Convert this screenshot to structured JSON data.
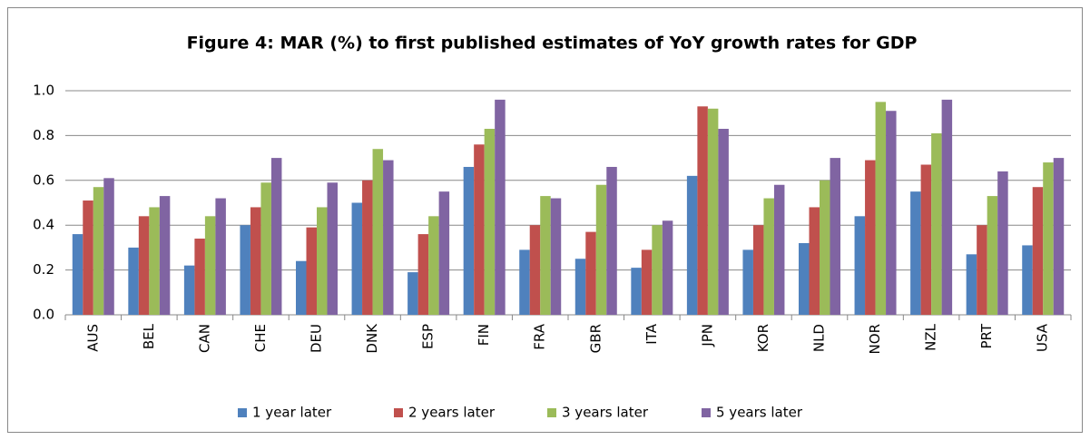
{
  "chart_data": {
    "type": "bar",
    "title": "Figure 4: MAR (%) to first published estimates of YoY growth rates for GDP",
    "categories": [
      "AUS",
      "BEL",
      "CAN",
      "CHE",
      "DEU",
      "DNK",
      "ESP",
      "FIN",
      "FRA",
      "GBR",
      "ITA",
      "JPN",
      "KOR",
      "NLD",
      "NOR",
      "NZL",
      "PRT",
      "USA"
    ],
    "series": [
      {
        "name": "1 year later",
        "color": "#4f81bd",
        "values": [
          0.36,
          0.3,
          0.22,
          0.4,
          0.24,
          0.5,
          0.19,
          0.66,
          0.29,
          0.25,
          0.21,
          0.62,
          0.29,
          0.32,
          0.44,
          0.55,
          0.27,
          0.31
        ]
      },
      {
        "name": "2 years later",
        "color": "#c0504d",
        "values": [
          0.51,
          0.44,
          0.34,
          0.48,
          0.39,
          0.6,
          0.36,
          0.76,
          0.4,
          0.37,
          0.29,
          0.93,
          0.4,
          0.48,
          0.69,
          0.67,
          0.4,
          0.57
        ]
      },
      {
        "name": "3 years later",
        "color": "#9bbb59",
        "values": [
          0.57,
          0.48,
          0.44,
          0.59,
          0.48,
          0.74,
          0.44,
          0.83,
          0.53,
          0.58,
          0.4,
          0.92,
          0.52,
          0.6,
          0.95,
          0.81,
          0.53,
          0.68
        ]
      },
      {
        "name": "5 years later",
        "color": "#8064a2",
        "values": [
          0.61,
          0.53,
          0.52,
          0.7,
          0.59,
          0.69,
          0.55,
          0.96,
          0.52,
          0.66,
          0.42,
          0.83,
          0.58,
          0.7,
          0.91,
          0.96,
          0.64,
          0.7
        ]
      }
    ],
    "ylim": [
      0,
      1
    ],
    "yticks": [
      {
        "value": 0,
        "label": "0.0"
      },
      0.2,
      0.4,
      0.6,
      0.8,
      {
        "value": 1,
        "label": "1.0"
      }
    ],
    "grid": true,
    "legend": "bottom"
  }
}
